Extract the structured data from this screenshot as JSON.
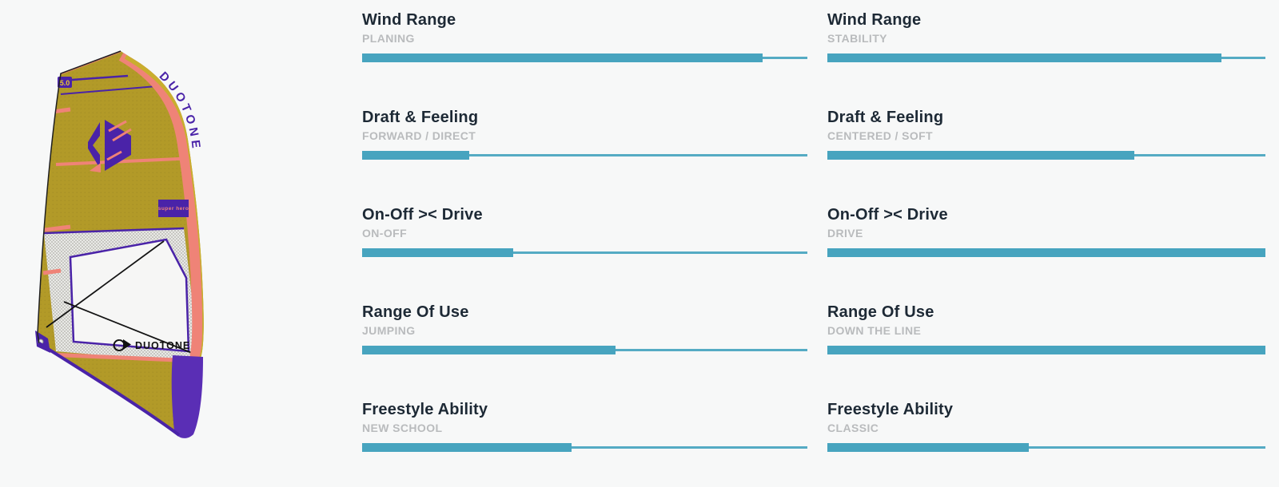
{
  "page": {
    "background": "#f7f8f8"
  },
  "accent_color": "#47a4bf",
  "sail": {
    "alt": "duotone-windsurf-sail-product-image",
    "brand_vertical": "DUOTONE",
    "size_label": "5.0",
    "model_badge": "super hero",
    "brand_wordmark": "DUOTONE",
    "colors": {
      "body": "#b29a28",
      "sleeve": "#c9ae2e",
      "luff_stripe": "#ef8377",
      "trim": "#4a23a8",
      "window": "#f6f6f5",
      "foot": "#5a2eb5"
    }
  },
  "ratings": {
    "columns": [
      {
        "items": [
          {
            "title": "Wind Range",
            "subtitle": "PLANING",
            "value": 90
          },
          {
            "title": "Draft & Feeling",
            "subtitle": "FORWARD / DIRECT",
            "value": 24
          },
          {
            "title": "On-Off >< Drive",
            "subtitle": "ON-OFF",
            "value": 34
          },
          {
            "title": "Range Of Use",
            "subtitle": "JUMPING",
            "value": 57
          },
          {
            "title": "Freestyle Ability",
            "subtitle": "NEW SCHOOL",
            "value": 47
          }
        ]
      },
      {
        "items": [
          {
            "title": "Wind Range",
            "subtitle": "STABILITY",
            "value": 90
          },
          {
            "title": "Draft & Feeling",
            "subtitle": "CENTERED / SOFT",
            "value": 70
          },
          {
            "title": "On-Off >< Drive",
            "subtitle": "DRIVE",
            "value": 100
          },
          {
            "title": "Range Of Use",
            "subtitle": "DOWN THE LINE",
            "value": 100
          },
          {
            "title": "Freestyle Ability",
            "subtitle": "CLASSIC",
            "value": 46
          }
        ]
      }
    ]
  }
}
